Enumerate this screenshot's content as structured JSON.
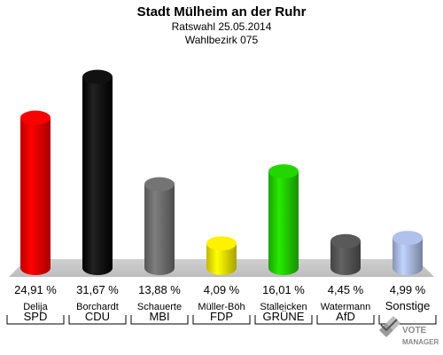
{
  "chart_data": {
    "type": "bar",
    "title": "Stadt Mülheim an der Ruhr",
    "subtitle_1": "Ratswahl 25.05.2014",
    "subtitle_2": "Wahlbezirk 075",
    "ylim": [
      0,
      35
    ],
    "categories": [
      "SPD",
      "CDU",
      "MBI",
      "FDP",
      "GRÜNE",
      "AfD",
      "Sonstige"
    ],
    "candidates": [
      "Delija",
      "Borchardt",
      "Schauerte",
      "Müller-Böh",
      "Stalleicken",
      "Watermann",
      ""
    ],
    "values": [
      24.91,
      31.67,
      13.88,
      4.09,
      16.01,
      4.45,
      4.99
    ],
    "value_labels": [
      "24,91 %",
      "31,67 %",
      "13,88 %",
      "4,09 %",
      "16,01 %",
      "4,45 %",
      "4,99 %"
    ],
    "colors": [
      "#ee0000",
      "#000000",
      "#6e6e6e",
      "#f2e600",
      "#22cc00",
      "#555555",
      "#a9b8e0"
    ]
  },
  "logo": {
    "line1": "VOTE",
    "line2": "MANAGER"
  }
}
